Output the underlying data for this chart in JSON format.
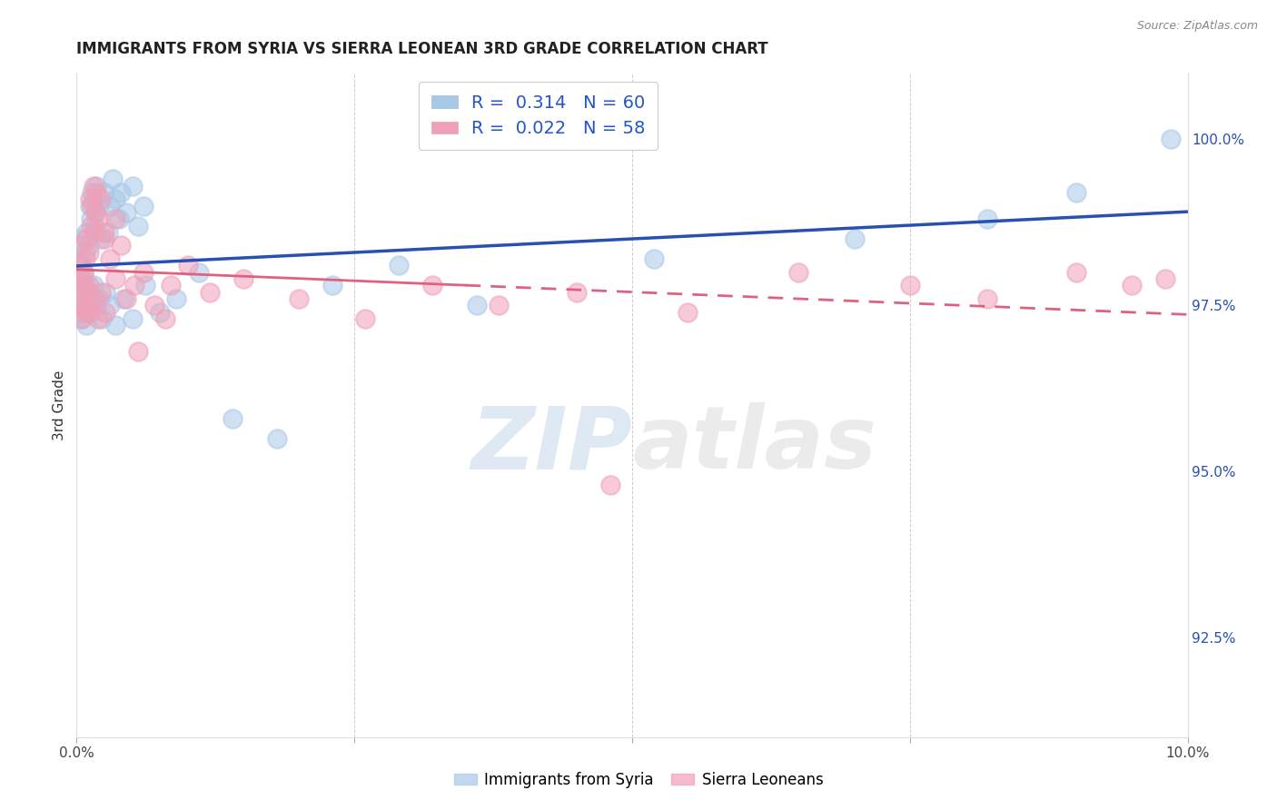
{
  "title": "IMMIGRANTS FROM SYRIA VS SIERRA LEONEAN 3RD GRADE CORRELATION CHART",
  "source": "Source: ZipAtlas.com",
  "ylabel": "3rd Grade",
  "y_min": 91.0,
  "y_max": 101.0,
  "x_min": 0.0,
  "x_max": 10.0,
  "legend1_r": "0.314",
  "legend1_n": "60",
  "legend2_r": "0.022",
  "legend2_n": "58",
  "legend1_label": "Immigrants from Syria",
  "legend2_label": "Sierra Leoneans",
  "blue_color": "#a8c8e8",
  "pink_color": "#f0a0b8",
  "blue_line_color": "#2850b0",
  "pink_line_color": "#e06080",
  "watermark_zip": "ZIP",
  "watermark_atlas": "atlas",
  "ytick_vals": [
    92.5,
    95.0,
    97.5,
    100.0
  ],
  "ytick_labels": [
    "92.5%",
    "95.0%",
    "97.5%",
    "100.0%"
  ],
  "blue_x": [
    0.02,
    0.03,
    0.04,
    0.05,
    0.06,
    0.07,
    0.08,
    0.09,
    0.1,
    0.11,
    0.12,
    0.13,
    0.14,
    0.15,
    0.16,
    0.17,
    0.18,
    0.2,
    0.22,
    0.25,
    0.28,
    0.3,
    0.32,
    0.35,
    0.38,
    0.4,
    0.45,
    0.5,
    0.55,
    0.6,
    0.02,
    0.03,
    0.05,
    0.07,
    0.09,
    0.11,
    0.13,
    0.15,
    0.18,
    0.2,
    0.23,
    0.26,
    0.3,
    0.35,
    0.42,
    0.5,
    0.62,
    0.75,
    0.9,
    1.1,
    1.4,
    1.8,
    2.3,
    2.9,
    3.6,
    5.2,
    7.0,
    8.2,
    9.0,
    9.85
  ],
  "blue_y": [
    98.2,
    98.5,
    98.1,
    97.8,
    98.0,
    97.9,
    98.3,
    98.6,
    97.5,
    98.4,
    99.0,
    98.8,
    99.2,
    99.1,
    98.7,
    98.9,
    99.3,
    99.0,
    98.5,
    99.2,
    98.6,
    99.0,
    99.4,
    99.1,
    98.8,
    99.2,
    98.9,
    99.3,
    98.7,
    99.0,
    97.4,
    97.6,
    97.3,
    97.5,
    97.2,
    97.7,
    97.4,
    97.8,
    97.5,
    97.6,
    97.3,
    97.7,
    97.5,
    97.2,
    97.6,
    97.3,
    97.8,
    97.4,
    97.6,
    98.0,
    95.8,
    95.5,
    97.8,
    98.1,
    97.5,
    98.2,
    98.5,
    98.8,
    99.2,
    100.0
  ],
  "pink_x": [
    0.02,
    0.03,
    0.04,
    0.05,
    0.06,
    0.07,
    0.08,
    0.09,
    0.1,
    0.11,
    0.12,
    0.13,
    0.14,
    0.15,
    0.16,
    0.17,
    0.18,
    0.2,
    0.22,
    0.25,
    0.03,
    0.05,
    0.07,
    0.09,
    0.11,
    0.13,
    0.16,
    0.19,
    0.22,
    0.26,
    0.3,
    0.35,
    0.4,
    0.45,
    0.52,
    0.6,
    0.7,
    0.85,
    1.0,
    1.2,
    1.5,
    2.0,
    2.6,
    3.2,
    3.8,
    4.5,
    5.5,
    6.5,
    7.5,
    8.2,
    9.0,
    9.5,
    9.8,
    0.25,
    0.35,
    0.55,
    0.8,
    4.8
  ],
  "pink_y": [
    98.1,
    98.4,
    97.9,
    97.6,
    98.0,
    97.8,
    98.2,
    98.5,
    97.4,
    98.3,
    99.1,
    98.7,
    99.0,
    99.3,
    98.6,
    98.9,
    99.2,
    98.8,
    99.1,
    98.5,
    97.5,
    97.3,
    97.7,
    97.4,
    97.8,
    97.5,
    97.6,
    97.3,
    97.7,
    97.4,
    98.2,
    97.9,
    98.4,
    97.6,
    97.8,
    98.0,
    97.5,
    97.8,
    98.1,
    97.7,
    97.9,
    97.6,
    97.3,
    97.8,
    97.5,
    97.7,
    97.4,
    98.0,
    97.8,
    97.6,
    98.0,
    97.8,
    97.9,
    98.6,
    98.8,
    96.8,
    97.3,
    94.8
  ]
}
